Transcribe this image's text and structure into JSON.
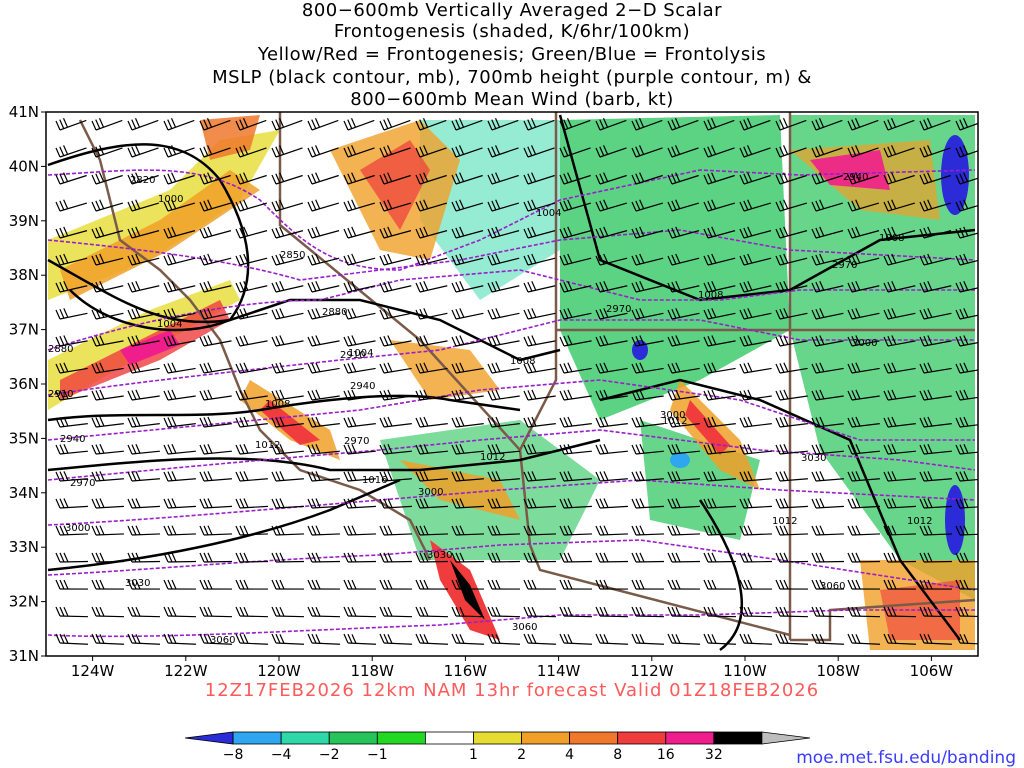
{
  "title": {
    "line1": "800−600mb Vertically Averaged 2−D Scalar",
    "line2": "Frontogenesis (shaded, K/6hr/100km)",
    "line3": "Yellow/Red = Frontogenesis;  Green/Blue = Frontolysis",
    "line4": "MSLP (black contour, mb), 700mb height (purple contour, m) &",
    "line5": "800−600mb Mean Wind (barb, kt)"
  },
  "run_label": "12Z17FEB2026 12km NAM 13hr forecast Valid 01Z18FEB2026",
  "credit": "moe.met.fsu.edu/banding",
  "map": {
    "lat_labels": [
      "41N",
      "40N",
      "39N",
      "38N",
      "37N",
      "36N",
      "35N",
      "34N",
      "33N",
      "32N",
      "31N"
    ],
    "lon_labels": [
      "124W",
      "122W",
      "120W",
      "118W",
      "116W",
      "114W",
      "112W",
      "110W",
      "108W",
      "106W"
    ],
    "lat_values": [
      41,
      40,
      39,
      38,
      37,
      36,
      35,
      34,
      33,
      32,
      31
    ],
    "lon_values": [
      -124,
      -122,
      -120,
      -118,
      -116,
      -114,
      -112,
      -110,
      -108,
      -106
    ],
    "extent": {
      "lon_min": -125,
      "lon_max": -105,
      "lat_min": 31,
      "lat_max": 41
    }
  },
  "mslp_labels": [
    "1000",
    "1004",
    "1004",
    "1004",
    "1008",
    "1008",
    "1008",
    "1012",
    "1012",
    "1012",
    "1016",
    "1008",
    "1012",
    "1012"
  ],
  "height_labels": [
    "2820",
    "2850",
    "2880",
    "2910",
    "2940",
    "2970",
    "3000",
    "3030",
    "3060",
    "2880",
    "2910",
    "2940",
    "2970",
    "3000",
    "3000",
    "3030",
    "3060",
    "2970",
    "3000",
    "3030",
    "3060",
    "2940",
    "2970"
  ],
  "colorbar": {
    "labels": [
      "−8",
      "−4",
      "−2",
      "−1",
      "1",
      "2",
      "4",
      "8",
      "16",
      "32"
    ],
    "colors": [
      "#2b2bd8",
      "#2ea6f0",
      "#2ed8a8",
      "#26c45a",
      "#22d822",
      "#ffffff",
      "#e6dc32",
      "#f0a028",
      "#f0782d",
      "#f03c3c",
      "#f01e8c",
      "#000000",
      "#bdbdbd"
    ]
  }
}
